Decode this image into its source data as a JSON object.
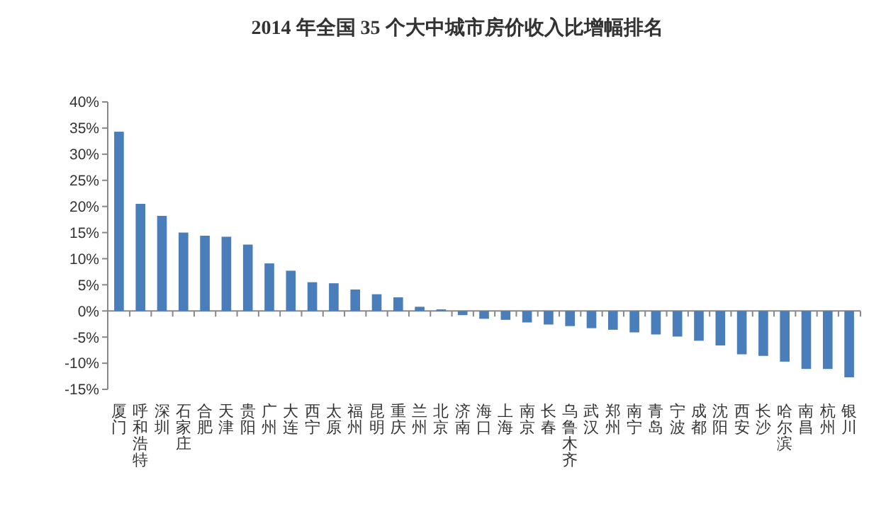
{
  "chart_data": {
    "type": "bar",
    "title": "2014 年全国 35 个大中城市房价收入比增幅排名",
    "categories": [
      "厦门",
      "呼和浩特",
      "深圳",
      "石家庄",
      "合肥",
      "天津",
      "贵阳",
      "广州",
      "大连",
      "西宁",
      "太原",
      "福州",
      "昆明",
      "重庆",
      "兰州",
      "北京",
      "济南",
      "海口",
      "上海",
      "南京",
      "长春",
      "乌鲁木齐",
      "武汉",
      "郑州",
      "南宁",
      "青岛",
      "宁波",
      "成都",
      "沈阳",
      "西安",
      "长沙",
      "哈尔滨",
      "南昌",
      "杭州",
      "银川"
    ],
    "values": [
      34.3,
      20.5,
      18.2,
      15.0,
      14.4,
      14.2,
      12.7,
      9.1,
      7.7,
      5.5,
      5.3,
      4.1,
      3.2,
      2.6,
      0.8,
      0.3,
      -0.8,
      -1.5,
      -1.7,
      -2.2,
      -2.6,
      -2.9,
      -3.3,
      -3.6,
      -4.1,
      -4.5,
      -4.9,
      -5.7,
      -6.6,
      -8.3,
      -8.6,
      -9.7,
      -11.1,
      -11.1,
      -12.7
    ],
    "color": "#4a7ebb",
    "ylim": [
      -15,
      40
    ],
    "yticks": [
      {
        "value": -15,
        "label": "-15%"
      },
      {
        "value": -10,
        "label": "-10%"
      },
      {
        "value": -5,
        "label": "-5%"
      },
      {
        "value": 0,
        "label": "0%"
      },
      {
        "value": 5,
        "label": "5%"
      },
      {
        "value": 10,
        "label": "10%"
      },
      {
        "value": 15,
        "label": "15%"
      },
      {
        "value": 20,
        "label": "20%"
      },
      {
        "value": 25,
        "label": "25%"
      },
      {
        "value": 30,
        "label": "30%"
      },
      {
        "value": 35,
        "label": "35%"
      },
      {
        "value": 40,
        "label": "40%"
      }
    ]
  }
}
